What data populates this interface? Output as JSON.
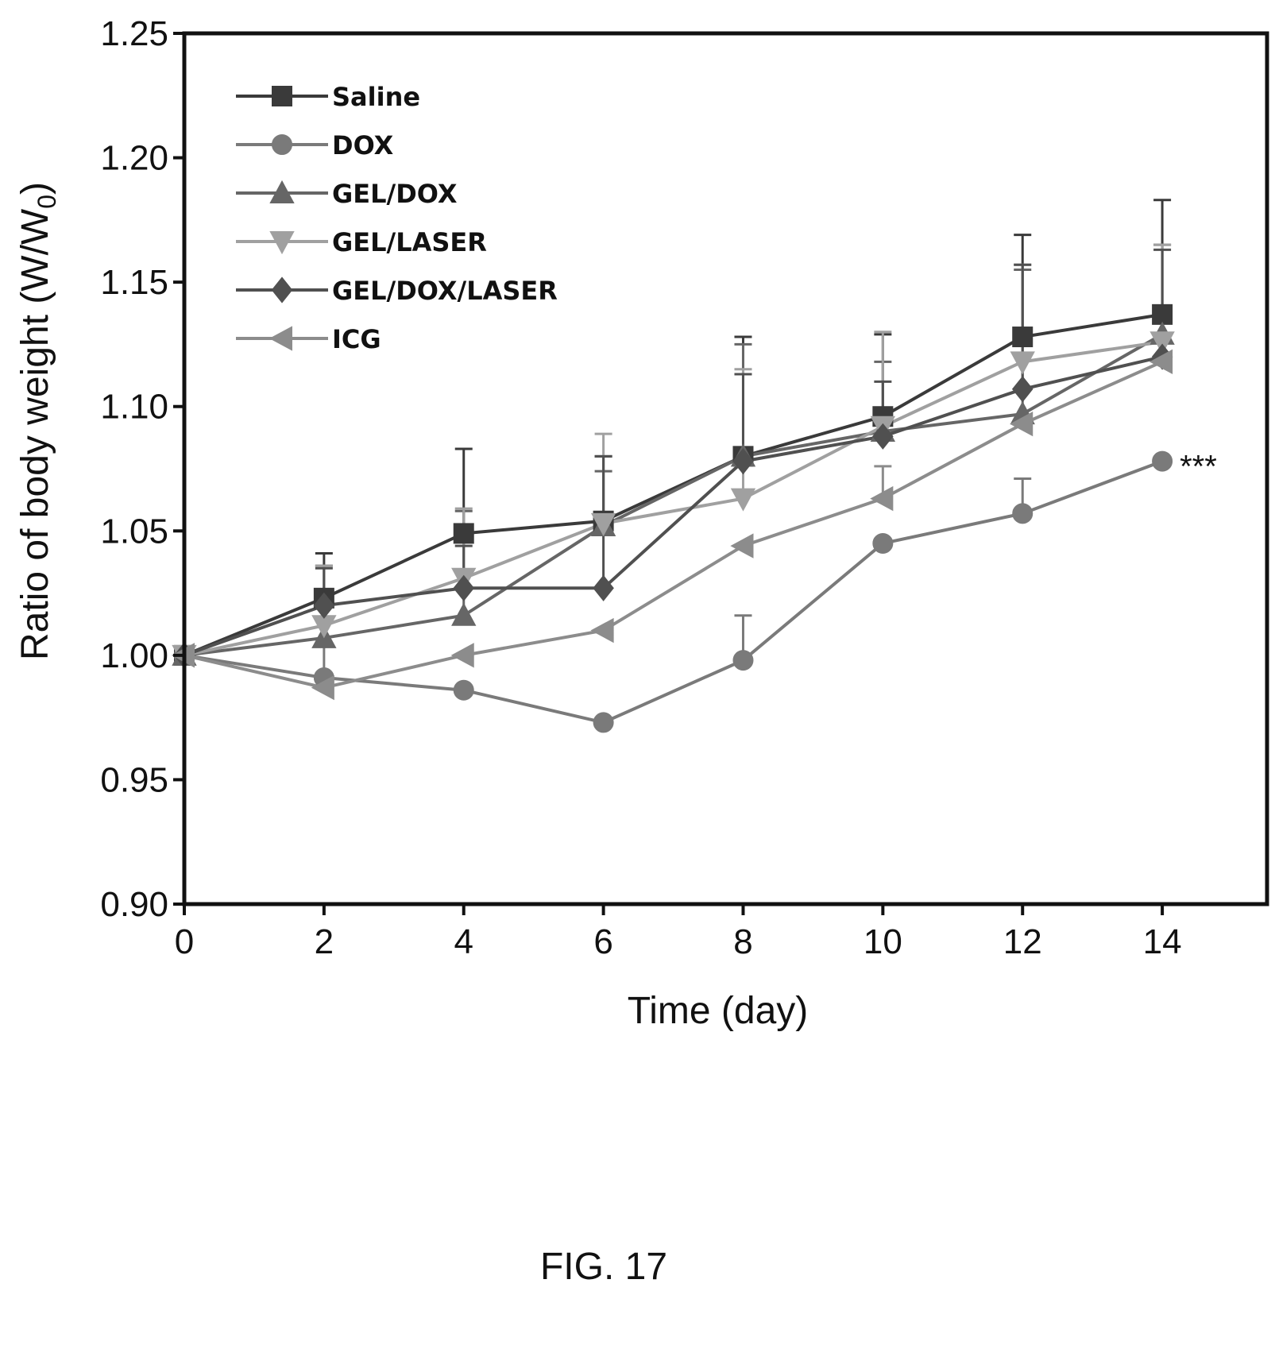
{
  "figure": {
    "caption": "FIG. 17"
  },
  "chart_data": {
    "type": "line",
    "xlabel": "Time (day)",
    "ylabel": "Ratio of body weight (W/W",
    "ylabel_subscript": "0",
    "ylabel_suffix": ")",
    "xlim": [
      0,
      15.5
    ],
    "ylim": [
      0.9,
      1.25
    ],
    "x_ticks": [
      "0",
      "2",
      "4",
      "6",
      "8",
      "10",
      "12",
      "14"
    ],
    "y_ticks": [
      "0.90",
      "0.95",
      "1.00",
      "1.05",
      "1.10",
      "1.15",
      "1.20",
      "1.25"
    ],
    "grid": false,
    "legend_position": "top-left",
    "x": [
      0,
      2,
      4,
      6,
      8,
      10,
      12,
      14
    ],
    "series": [
      {
        "name": "Saline",
        "marker": "square",
        "color": "#3a3a3a",
        "values": [
          1.0,
          1.023,
          1.049,
          1.054,
          1.08,
          1.096,
          1.128,
          1.137
        ],
        "err": [
          0,
          0.018,
          0.034,
          0.026,
          0.048,
          0.033,
          0.041,
          0.046
        ]
      },
      {
        "name": "DOX",
        "marker": "circle",
        "color": "#7a7a7a",
        "values": [
          1.0,
          0.991,
          0.986,
          0.973,
          0.998,
          1.045,
          1.057,
          1.078
        ],
        "err": [
          0,
          0.014,
          0,
          0,
          0.018,
          0,
          0.014,
          0
        ]
      },
      {
        "name": "GEL/DOX",
        "marker": "triangle-up",
        "color": "#666666",
        "values": [
          1.0,
          1.007,
          1.016,
          1.052,
          1.08,
          1.09,
          1.097,
          1.129
        ],
        "err": [
          0,
          0.029,
          0.042,
          0.022,
          0.045,
          0.028,
          0.058,
          0.036
        ]
      },
      {
        "name": "GEL/LASER",
        "marker": "triangle-down",
        "color": "#a0a0a0",
        "values": [
          1.0,
          1.012,
          1.031,
          1.053,
          1.063,
          1.092,
          1.118,
          1.126
        ],
        "err": [
          0,
          0.024,
          0.028,
          0.036,
          0.052,
          0.038,
          0.039,
          0.039
        ]
      },
      {
        "name": "GEL/DOX/LASER",
        "marker": "diamond",
        "color": "#505050",
        "values": [
          1.0,
          1.02,
          1.027,
          1.027,
          1.078,
          1.088,
          1.107,
          1.12
        ],
        "err": [
          0,
          0.015,
          0.017,
          0.053,
          0.035,
          0.022,
          0.05,
          0.043
        ]
      },
      {
        "name": "ICG",
        "marker": "triangle-left",
        "color": "#8c8c8c",
        "values": [
          1.0,
          0.987,
          1.0,
          1.01,
          1.044,
          1.063,
          1.093,
          1.118
        ],
        "err": [
          0,
          0,
          0,
          0,
          0,
          0.013,
          0,
          0
        ]
      }
    ],
    "annotations": [
      {
        "text": "***",
        "series": "DOX",
        "x": 14
      }
    ]
  }
}
